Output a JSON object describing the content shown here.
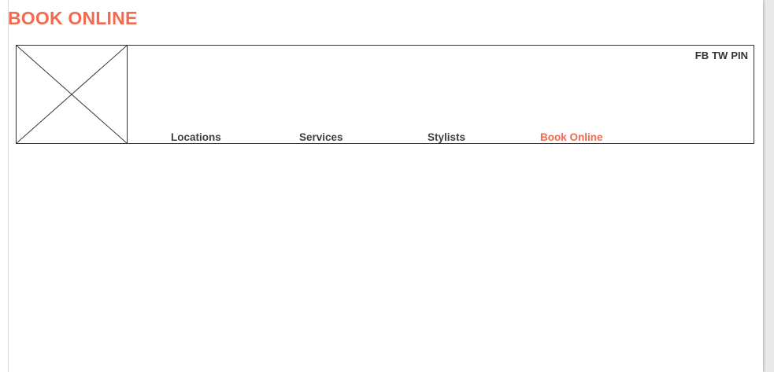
{
  "page": {
    "title": "BOOK ONLINE"
  },
  "header": {
    "logo_icon": "image-placeholder-icon",
    "social": {
      "fb": "FB",
      "tw": "TW",
      "pin": "PIN"
    },
    "nav": {
      "locations": "Locations",
      "services": "Services",
      "stylists": "Stylists",
      "book_online": "Book Online",
      "active": "book_online"
    }
  },
  "colors": {
    "accent": "#f26a4f",
    "text": "#404040",
    "border": "#333333"
  }
}
